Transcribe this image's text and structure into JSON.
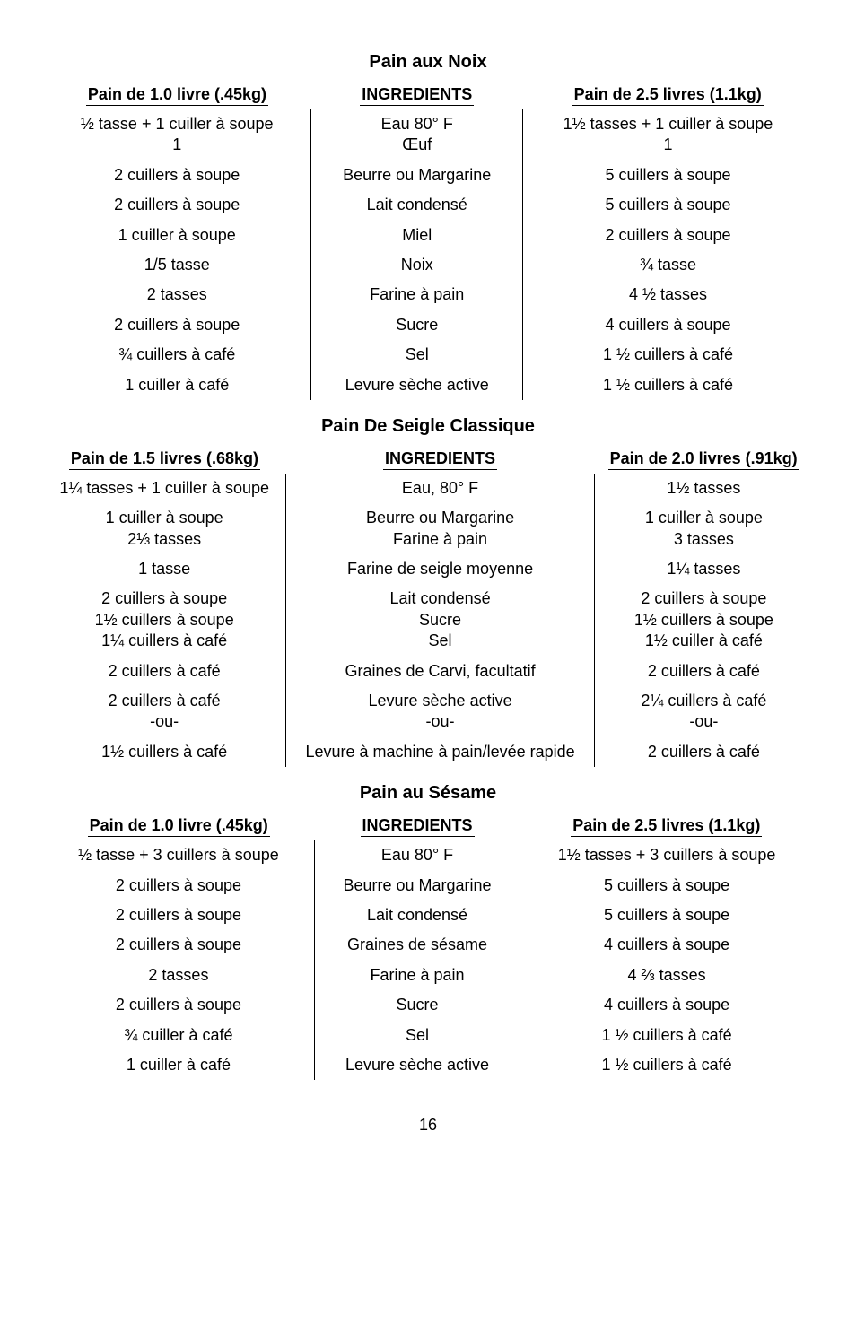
{
  "page_number": "16",
  "recipes": [
    {
      "title": "Pain aux Noix",
      "headers": [
        "Pain de 1.0 livre (.45kg)",
        "INGREDIENTS",
        "Pain de 2.5 livres (1.1kg)"
      ],
      "rows": [
        [
          "½ tasse + 1 cuiller à soupe\n1",
          "Eau 80° F\nŒuf",
          "1½ tasses + 1 cuiller à soupe\n1"
        ],
        [
          "2 cuillers à soupe",
          "Beurre ou Margarine",
          "5 cuillers à soupe"
        ],
        [
          "2 cuillers à soupe",
          "Lait condensé",
          "5 cuillers à soupe"
        ],
        [
          "1 cuiller à soupe",
          "Miel",
          "2 cuillers à soupe"
        ],
        [
          "1/5 tasse",
          "Noix",
          "¾ tasse"
        ],
        [
          "2 tasses",
          "Farine à pain",
          "4 ½ tasses"
        ],
        [
          "2 cuillers à soupe",
          "Sucre",
          "4 cuillers à soupe"
        ],
        [
          "¾ cuillers à café",
          "Sel",
          "1 ½ cuillers à café"
        ],
        [
          "1 cuiller à café",
          "Levure sèche active",
          "1 ½ cuillers à café"
        ]
      ]
    },
    {
      "title": "Pain De Seigle Classique",
      "headers": [
        "Pain de 1.5 livres (.68kg)",
        "INGREDIENTS",
        "Pain de 2.0 livres (.91kg)"
      ],
      "rows": [
        [
          "1¼ tasses + 1 cuiller à soupe",
          "Eau, 80° F",
          "1½ tasses"
        ],
        [
          "1 cuiller à soupe\n2⅓ tasses",
          "Beurre ou Margarine\nFarine à pain",
          "1 cuiller à soupe\n3 tasses"
        ],
        [
          "1 tasse",
          "Farine de seigle moyenne",
          "1¼ tasses"
        ],
        [
          "2 cuillers à soupe\n1½ cuillers à soupe\n1¼ cuillers à café",
          "Lait condensé\nSucre\nSel",
          "2 cuillers à soupe\n1½ cuillers à soupe\n1½ cuiller à café"
        ],
        [
          "2 cuillers à café",
          "Graines de Carvi, facultatif",
          "2 cuillers à café"
        ],
        [
          "2 cuillers à café\n-ou-",
          "Levure sèche active\n-ou-",
          "2¼ cuillers à café\n-ou-"
        ],
        [
          "1½ cuillers à café",
          "Levure à machine à pain/levée rapide",
          "2 cuillers à café"
        ]
      ]
    },
    {
      "title": "Pain au Sésame",
      "headers": [
        "Pain de 1.0 livre (.45kg)",
        "INGREDIENTS",
        "Pain de 2.5 livres (1.1kg)"
      ],
      "rows": [
        [
          "½ tasse + 3 cuillers à soupe",
          "Eau 80° F",
          "1½ tasses + 3 cuillers à soupe"
        ],
        [
          "2 cuillers à soupe",
          "Beurre ou Margarine",
          "5 cuillers à soupe"
        ],
        [
          "2 cuillers à soupe",
          "Lait condensé",
          "5 cuillers à soupe"
        ],
        [
          "2 cuillers à soupe",
          "Graines de sésame",
          "4 cuillers à soupe"
        ],
        [
          "2 tasses",
          "Farine à pain",
          "4 ⅔ tasses"
        ],
        [
          "2 cuillers à soupe",
          "Sucre",
          "4 cuillers à soupe"
        ],
        [
          "¾ cuiller à café",
          "Sel",
          "1 ½ cuillers à café"
        ],
        [
          "1 cuiller à café",
          "Levure sèche active",
          "1 ½ cuillers à café"
        ]
      ]
    }
  ]
}
